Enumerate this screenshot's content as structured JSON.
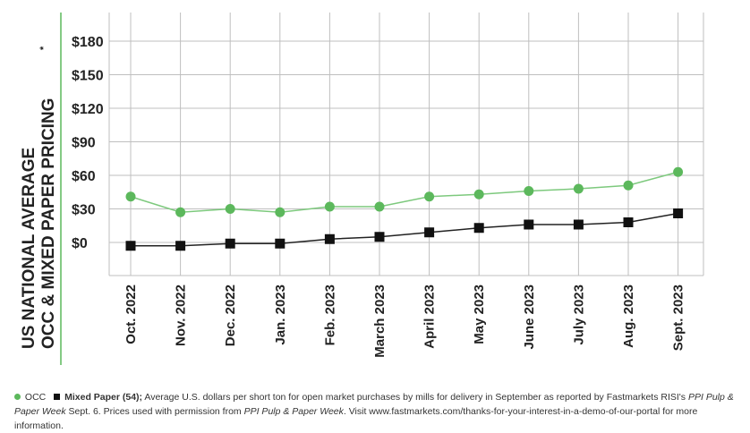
{
  "chart_data": {
    "type": "line",
    "ylabel_line1": "US NATIONAL AVERAGE",
    "ylabel_line2": "OCC & MIXED PAPER PRICING",
    "ylabel_mark": "*",
    "categories": [
      "Oct. 2022",
      "Nov. 2022",
      "Dec. 2022",
      "Jan. 2023",
      "Feb. 2023",
      "March 2023",
      "April 2023",
      "May 2023",
      "June 2023",
      "July 2023",
      "Aug. 2023",
      "Sept. 2023"
    ],
    "yticks": [
      "$180",
      "$150",
      "$120",
      "$90",
      "$60",
      "$30",
      "$0"
    ],
    "ytick_values": [
      180,
      150,
      120,
      90,
      60,
      30,
      0
    ],
    "ylim": [
      -30,
      200
    ],
    "grid": true,
    "series": [
      {
        "name": "OCC",
        "color": "#5cb85c",
        "marker": "circle",
        "values": [
          41,
          27,
          30,
          27,
          32,
          32,
          41,
          43,
          46,
          48,
          51,
          63
        ]
      },
      {
        "name": "Mixed Paper (54)",
        "color": "#111111",
        "marker": "square",
        "values": [
          -3,
          -3,
          -1,
          -1,
          3,
          5,
          9,
          13,
          16,
          16,
          18,
          26
        ]
      }
    ]
  },
  "footnote": {
    "occ_label": "OCC",
    "mixed_label": "Mixed Paper (54);",
    "text1": " Average U.S. dollars per short ton for open market purchases by mills for delivery in September as reported by Fastmarkets RISI's ",
    "pub1": "PPI Pulp & Paper Week",
    "text2": " Sept. 6. Prices used with permission from ",
    "pub2": "PPI Pulp & Paper Week",
    "text3": ". Visit www.fastmarkets.com/thanks-for-your-interest-in-a-demo-of-our-portal for more information."
  }
}
